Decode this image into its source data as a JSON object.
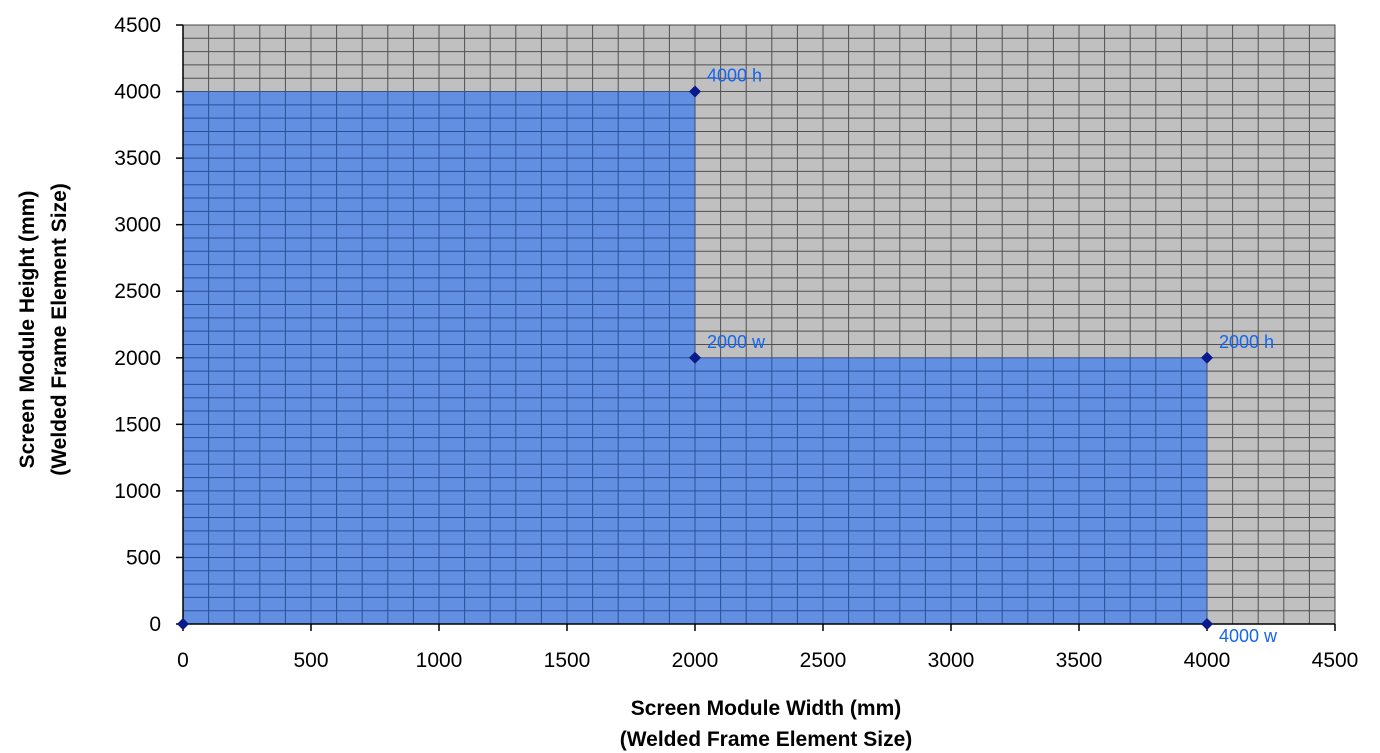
{
  "chart_data": {
    "type": "area",
    "xlabel_lines": [
      "Screen Module Width (mm)",
      "(Welded Frame Element Size)"
    ],
    "ylabel_lines": [
      "Screen Module Height (mm)",
      "(Welded Frame Element Size)"
    ],
    "xlim": [
      0,
      4500
    ],
    "ylim": [
      0,
      4500
    ],
    "x_ticks": [
      0,
      500,
      1000,
      1500,
      2000,
      2500,
      3000,
      3500,
      4000,
      4500
    ],
    "y_ticks": [
      0,
      500,
      1000,
      1500,
      2000,
      2500,
      3000,
      3500,
      4000,
      4500
    ],
    "grid": true,
    "minor_grid_x_step": 100,
    "minor_grid_y_step": 100,
    "series": [
      {
        "points": [
          {
            "x": 0,
            "y": 0,
            "label": ""
          },
          {
            "x": 2000,
            "y": 4000,
            "label": "4000 h"
          },
          {
            "x": 2000,
            "y": 2000,
            "label": "2000 w"
          },
          {
            "x": 4000,
            "y": 2000,
            "label": "2000 h"
          },
          {
            "x": 4000,
            "y": 0,
            "label": "4000 w"
          }
        ]
      }
    ],
    "colors": {
      "plot_background": "#c0c0c0",
      "area_fill": "#628fe1",
      "grid_on_background": "#505050",
      "grid_on_area": "#2a4f9a",
      "marker": "#0a1a8a",
      "point_label": "#1565ef"
    }
  }
}
